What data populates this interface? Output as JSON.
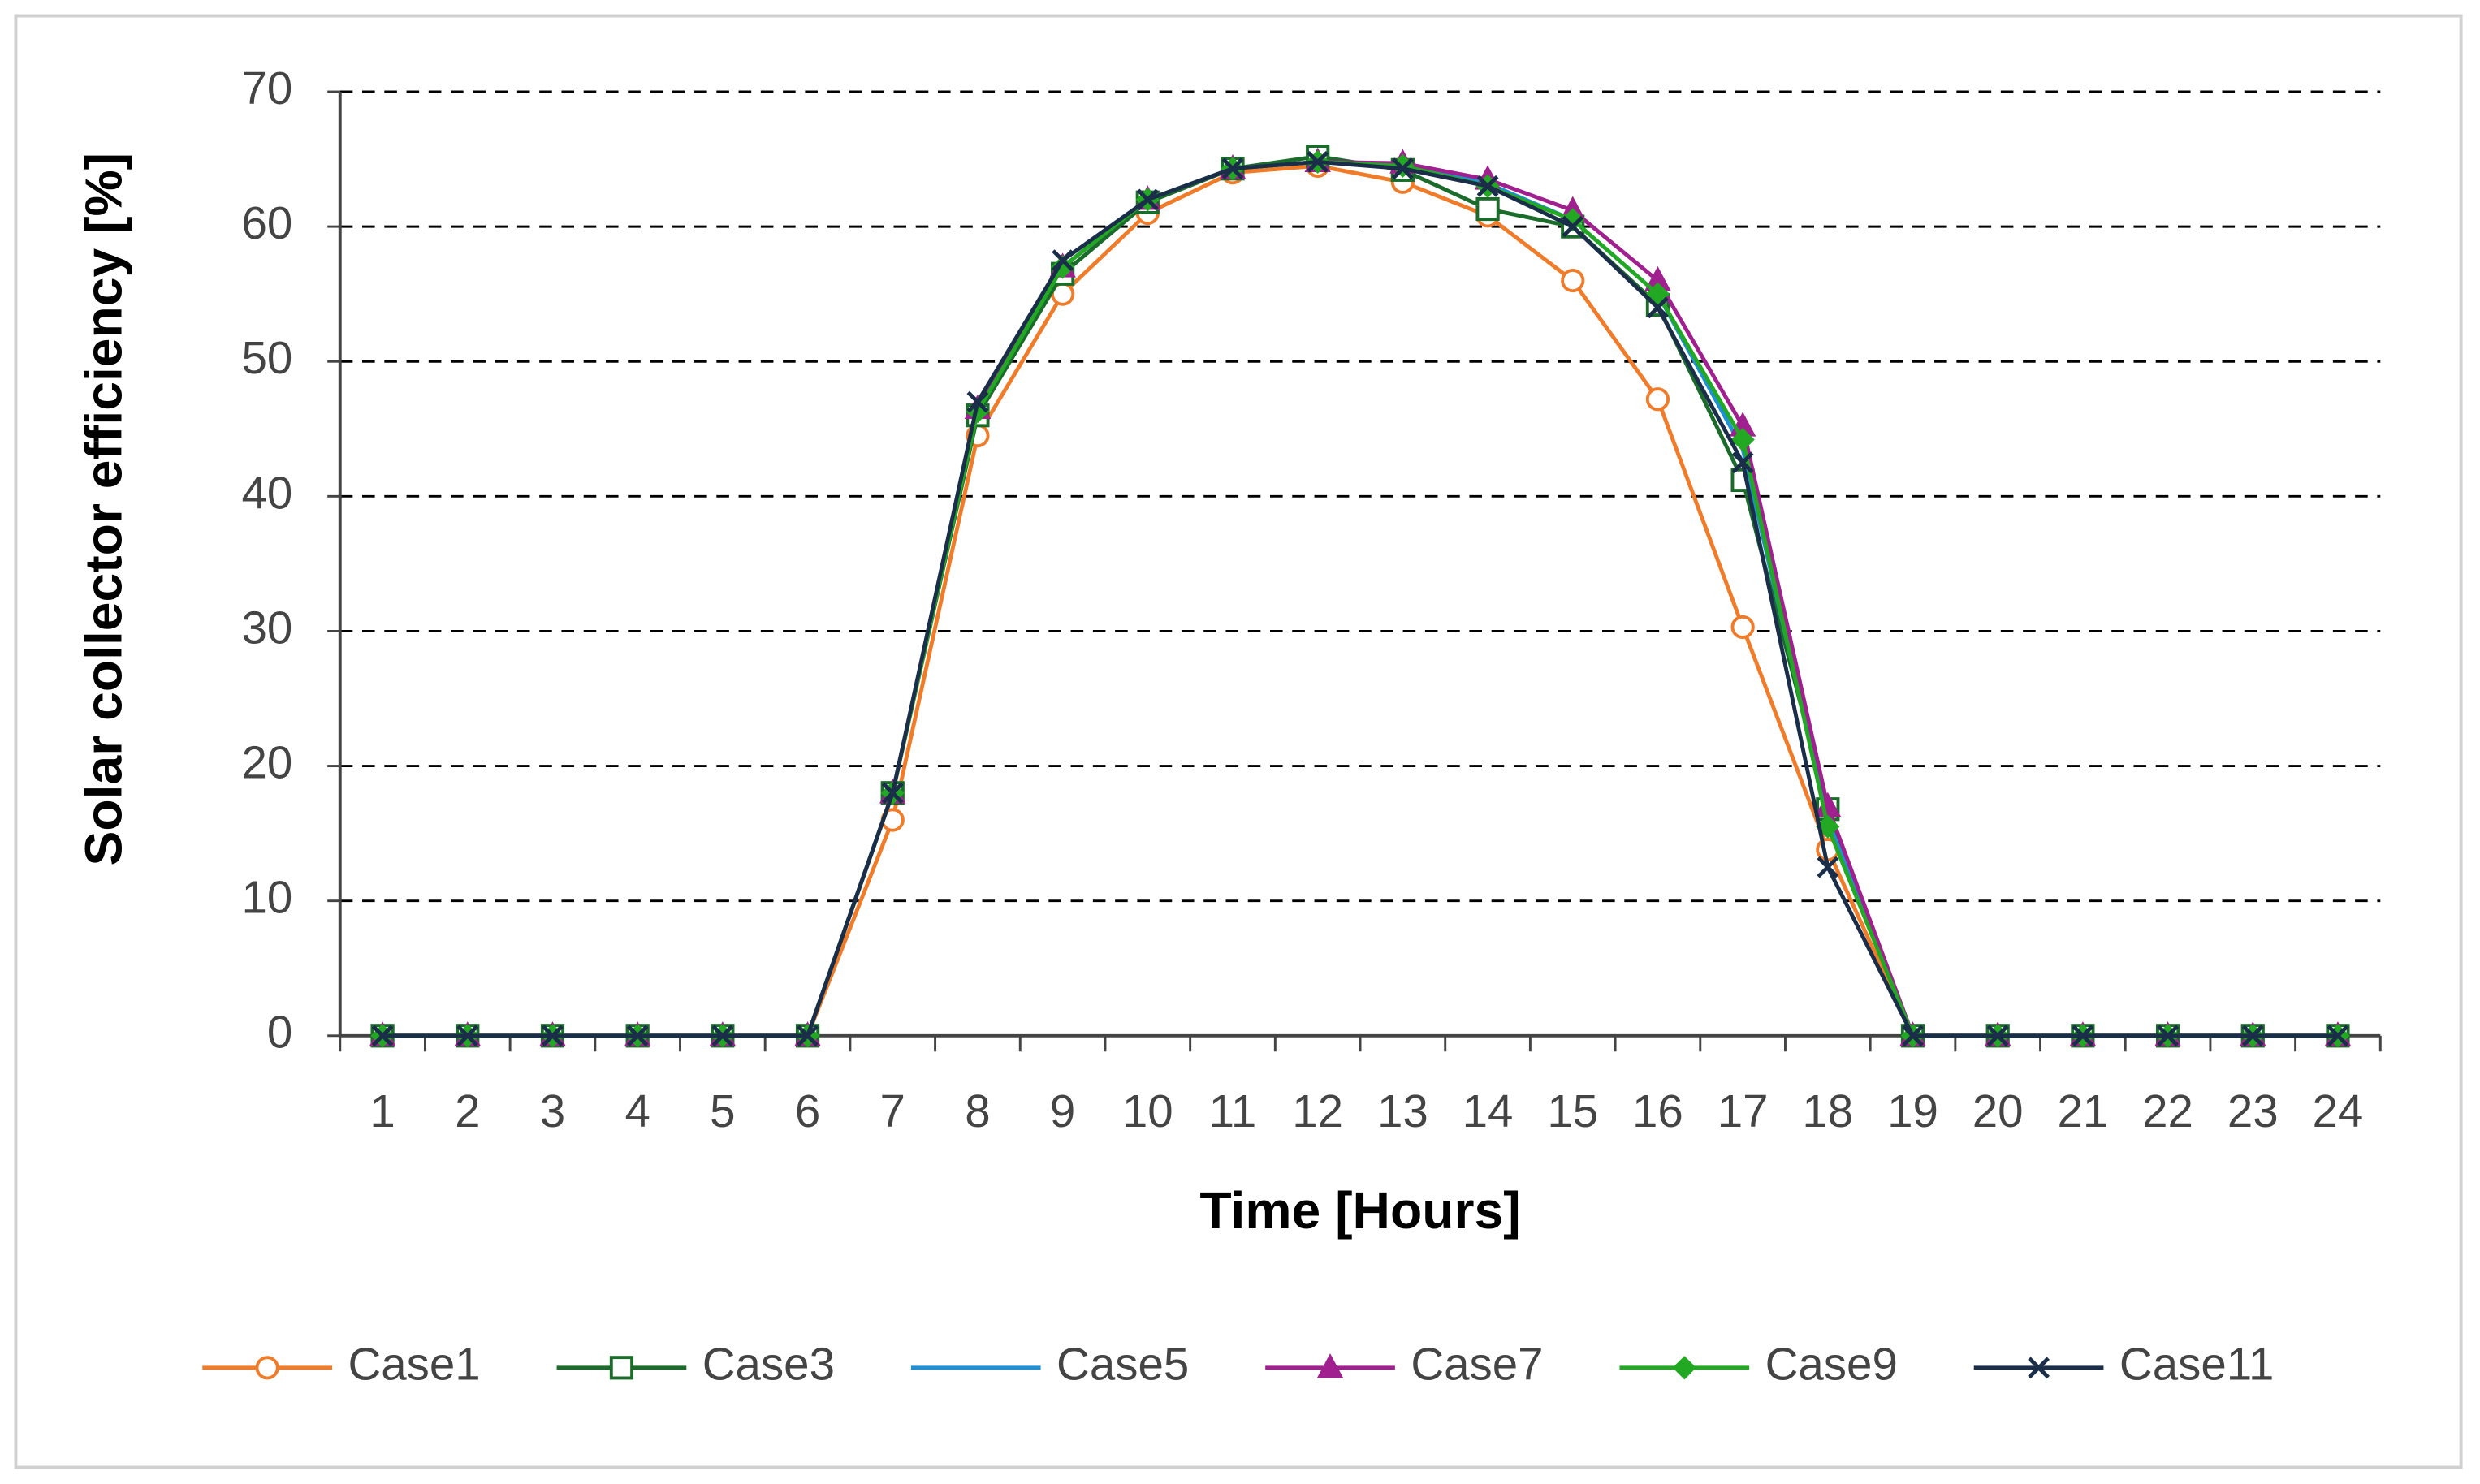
{
  "chart_data": {
    "type": "line",
    "x_label": "Time [Hours]",
    "y_label": "Solar collector efficiency [%]",
    "categories": [
      "1",
      "2",
      "3",
      "4",
      "5",
      "6",
      "7",
      "8",
      "9",
      "10",
      "11",
      "12",
      "13",
      "14",
      "15",
      "16",
      "17",
      "18",
      "19",
      "20",
      "21",
      "22",
      "23",
      "24"
    ],
    "series": [
      {
        "name": "Case1",
        "color": "#f07c2a",
        "marker": "circle",
        "values": [
          0,
          0,
          0,
          0,
          0,
          0,
          16,
          44.5,
          55,
          61,
          64,
          64.5,
          63.3,
          60.8,
          56,
          47.2,
          30.3,
          13.8,
          0,
          0,
          0,
          0,
          0,
          0
        ]
      },
      {
        "name": "Case3",
        "color": "#1b6b2a",
        "marker": "square",
        "values": [
          0,
          0,
          0,
          0,
          0,
          0,
          18,
          46,
          56.5,
          61.8,
          64.3,
          65.2,
          64.2,
          61.3,
          60,
          54.2,
          41.2,
          16.8,
          0,
          0,
          0,
          0,
          0,
          0
        ]
      },
      {
        "name": "Case5",
        "color": "#1f8fd6",
        "marker": "none",
        "values": [
          0,
          0,
          0,
          0,
          0,
          0,
          18,
          46.5,
          57,
          62,
          64.3,
          64.8,
          64.5,
          63.2,
          60.5,
          55,
          43.5,
          16,
          0,
          0,
          0,
          0,
          0,
          0
        ]
      },
      {
        "name": "Case7",
        "color": "#a0208f",
        "marker": "triangle",
        "values": [
          0,
          0,
          0,
          0,
          0,
          0,
          18,
          46.5,
          57,
          62,
          64.3,
          64.8,
          64.7,
          63.5,
          61.2,
          56,
          45.2,
          17,
          0,
          0,
          0,
          0,
          0,
          0
        ]
      },
      {
        "name": "Case9",
        "color": "#22a822",
        "marker": "diamond",
        "values": [
          0,
          0,
          0,
          0,
          0,
          0,
          18,
          46.3,
          57,
          62,
          64.3,
          64.8,
          64.5,
          63,
          60.5,
          55,
          44.2,
          15.5,
          0,
          0,
          0,
          0,
          0,
          0
        ]
      },
      {
        "name": "Case11",
        "color": "#1a2e4a",
        "marker": "x",
        "values": [
          0,
          0,
          0,
          0,
          0,
          0,
          18,
          47,
          57.5,
          62,
          64.3,
          64.8,
          64.3,
          63,
          60,
          54,
          42.5,
          12.5,
          0,
          0,
          0,
          0,
          0,
          0
        ]
      }
    ],
    "ylim": [
      0,
      70
    ],
    "yticks": [
      0,
      10,
      20,
      30,
      40,
      50,
      60,
      70
    ],
    "grid": true,
    "legend": "bottom"
  }
}
